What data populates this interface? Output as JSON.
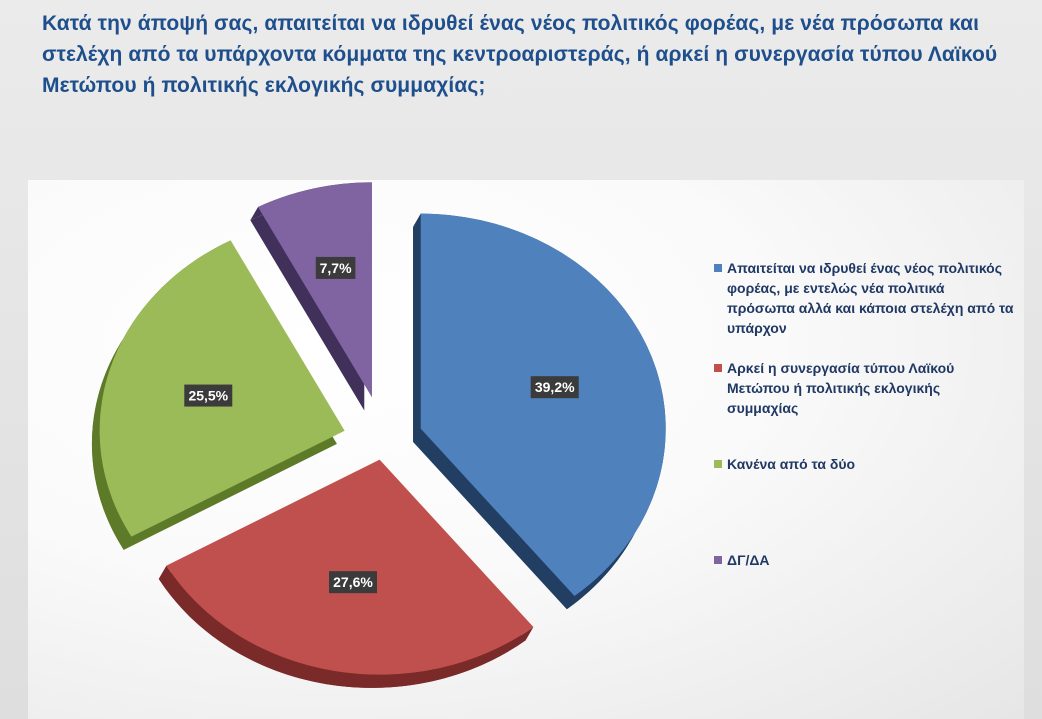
{
  "title": "Κατά την άποψή σας, απαιτείται να ιδρυθεί ένας νέος πολιτικός φορέας, με νέα πρόσωπα και στελέχη από τα υπάρχοντα κόμματα της κεντροαριστεράς, ή αρκεί η συνεργασία τύπου  Λαϊκού  Μετώπου ή πολιτικής εκλογικής συμμαχίας;",
  "chart_data": {
    "type": "pie",
    "title": "Κατά την άποψή σας, απαιτείται να ιδρυθεί ένας νέος πολιτικός φορέας, με νέα πρόσωπα και στελέχη από τα υπάρχοντα κόμματα της κεντροαριστεράς, ή αρκεί η συνεργασία τύπου  Λαϊκού  Μετώπου ή πολιτικής εκλογικής συμμαχίας;",
    "legend_position": "right",
    "slices": [
      {
        "label": "Απαιτείται να ιδρυθεί ένας νέος πολιτικός φορέας, με εντελώς νέα πολιτικά πρόσωπα αλλά και κάποια στελέχη από τα υπάρχον",
        "value": 39.2,
        "display": "39,2%",
        "color": "#4f81bd",
        "side_color": "#223e63"
      },
      {
        "label": "Αρκεί η συνεργασία τύπου  Λαϊκού Μετώπου ή πολιτικής εκλογικής συμμαχίας",
        "value": 27.6,
        "display": "27,6%",
        "color": "#c0504d",
        "side_color": "#7a2b29"
      },
      {
        "label": "Κανένα από τα δύο",
        "value": 25.5,
        "display": "25,5%",
        "color": "#9bbb59",
        "side_color": "#5d7a28"
      },
      {
        "label": "ΔΓ/ΔΑ",
        "value": 7.7,
        "display": "7,7%",
        "color": "#8064a2",
        "side_color": "#40305a"
      }
    ]
  }
}
